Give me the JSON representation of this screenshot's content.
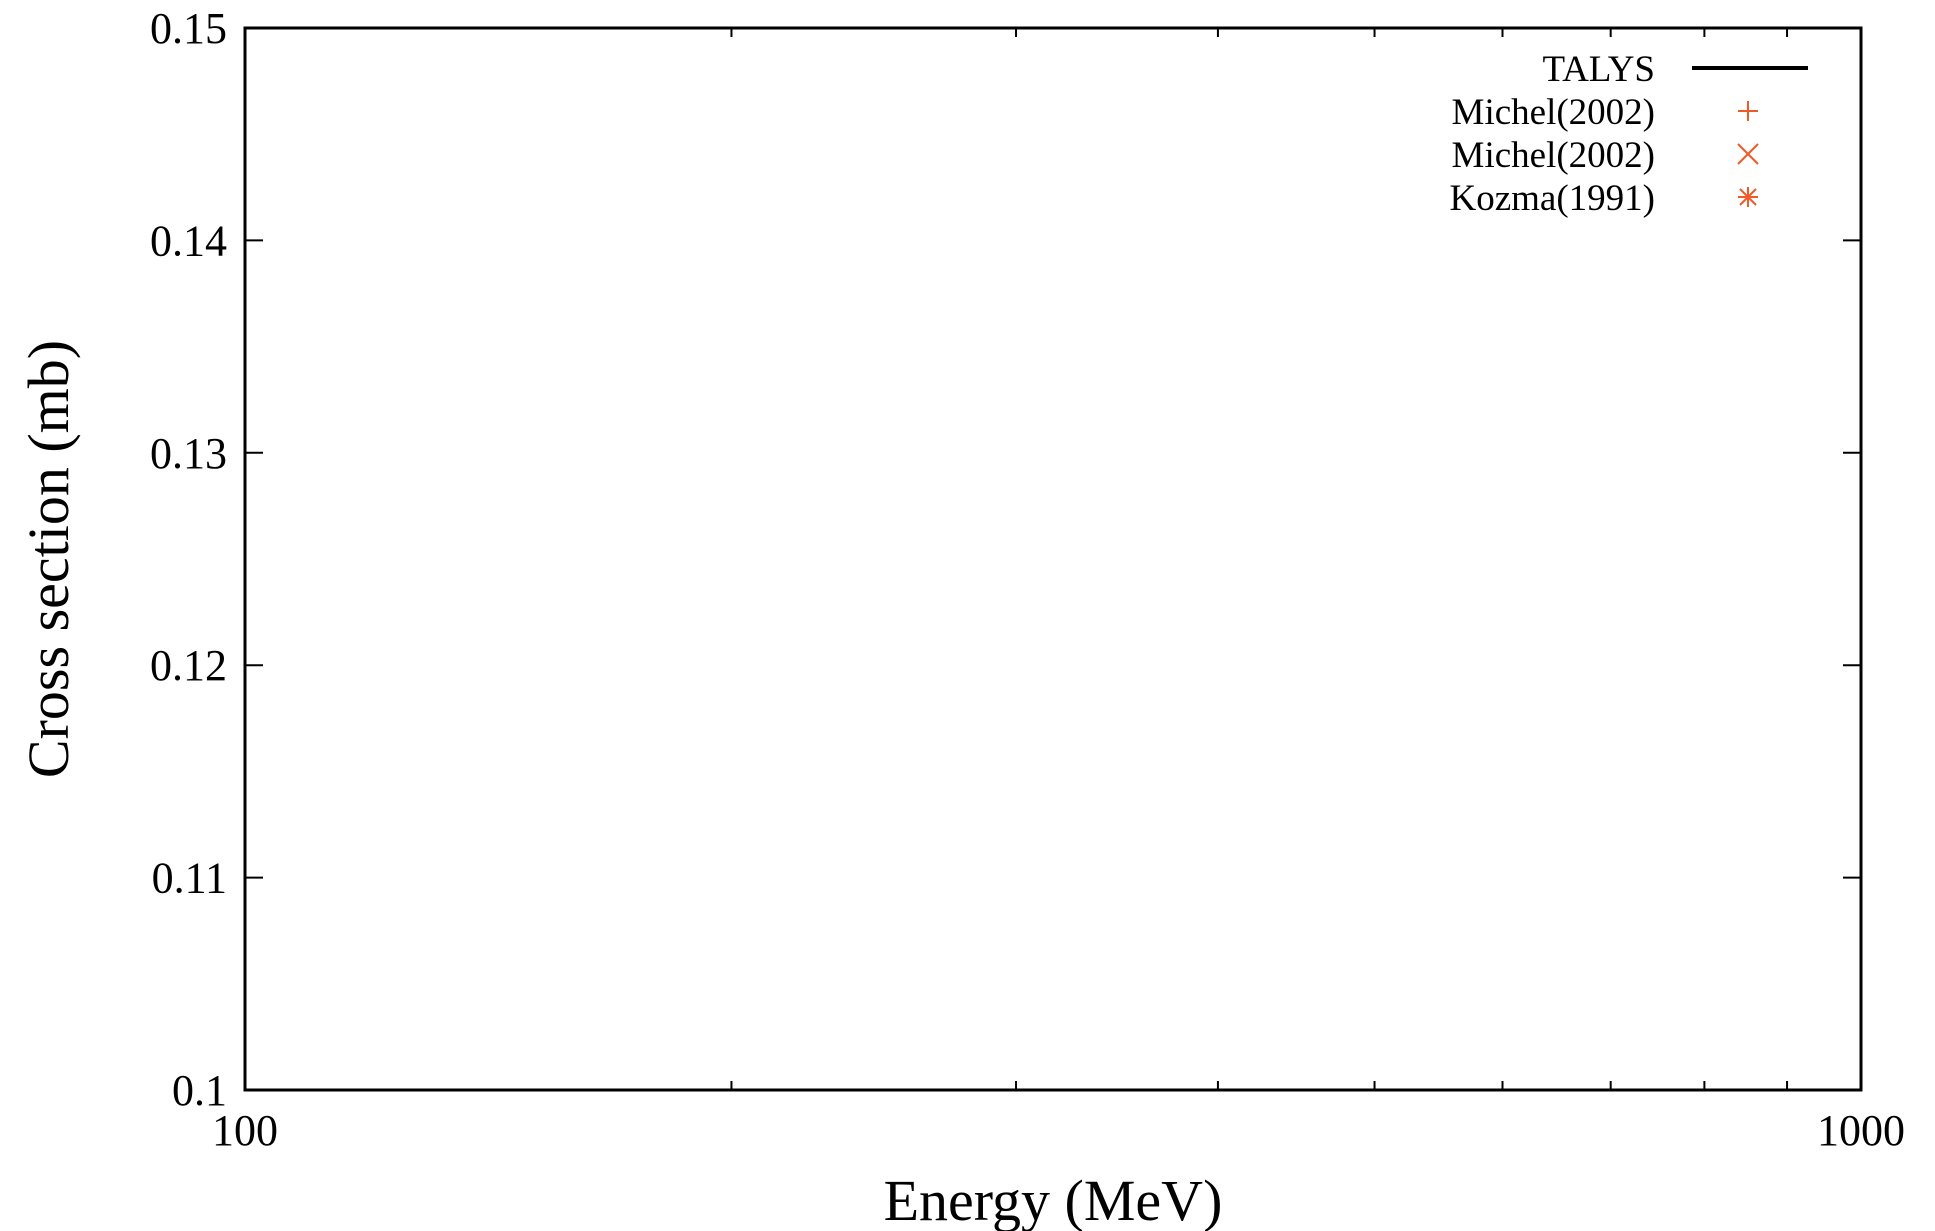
{
  "chart_data": {
    "type": "scatter",
    "title": "",
    "xlabel": "Energy (MeV)",
    "ylabel": "Cross section (mb)",
    "xscale": "log",
    "xlim": [
      100,
      1000
    ],
    "ylim": [
      0.1,
      0.15
    ],
    "x_ticks": [
      {
        "value": 100,
        "label": "100"
      },
      {
        "value": 1000,
        "label": "1000"
      }
    ],
    "x_minor_ticks": [
      200,
      300,
      400,
      500,
      600,
      700,
      800,
      900
    ],
    "y_ticks": [
      {
        "value": 0.1,
        "label": "0.1"
      },
      {
        "value": 0.11,
        "label": "0.11"
      },
      {
        "value": 0.12,
        "label": "0.12"
      },
      {
        "value": 0.13,
        "label": "0.13"
      },
      {
        "value": 0.14,
        "label": "0.14"
      },
      {
        "value": 0.15,
        "label": "0.15"
      }
    ],
    "grid": false,
    "legend_position": "top-right",
    "series": [
      {
        "name": "TALYS",
        "marker": "line",
        "color": "#000000",
        "points": []
      },
      {
        "name": "Michel(2002)",
        "marker": "plus",
        "color": "#f05a28",
        "points": []
      },
      {
        "name": "Michel(2002)",
        "marker": "cross",
        "color": "#f05a28",
        "points": []
      },
      {
        "name": "Kozma(1991)",
        "marker": "asterisk",
        "color": "#f05a28",
        "points": []
      }
    ]
  }
}
